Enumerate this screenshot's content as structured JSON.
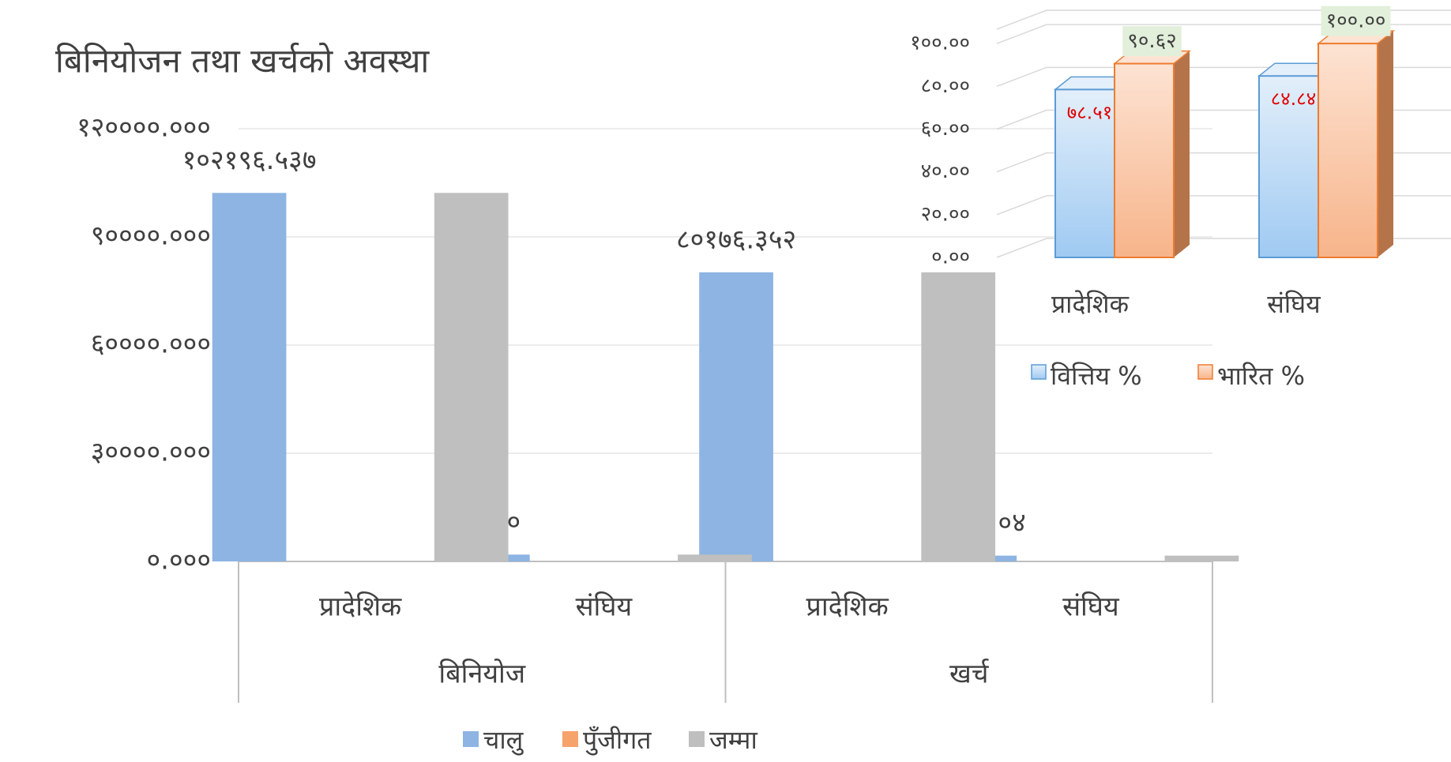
{
  "chart_data": [
    {
      "type": "bar",
      "title": "बिनियोजन तथा खर्चको अवस्था",
      "group_labels": [
        "बिनियोज",
        "खर्च"
      ],
      "categories": [
        "प्रादेशिक",
        "संघिय",
        "प्रादेशिक",
        "संघिय"
      ],
      "series": [
        {
          "name": "चालु",
          "color": "#8db4e2",
          "values": [
            102196.537,
            1900,
            80176.352,
            1612.04
          ],
          "value_labels": [
            "१०२१९६.५३७",
            "१९००",
            "८०१७६.३५२",
            "१६१२.०४"
          ]
        },
        {
          "name": "पुँजीगत",
          "color": "#f6a26b",
          "values": [
            0,
            0,
            0,
            0
          ]
        },
        {
          "name": "जम्मा",
          "color": "#bfbfbf",
          "values": [
            102196.537,
            1900,
            80176.352,
            1612.04
          ]
        }
      ],
      "ylim": [
        0,
        120000
      ],
      "yticks": [
        {
          "value": 0,
          "label": "०.०००"
        },
        {
          "value": 30000,
          "label": "३००००.०००"
        },
        {
          "value": 60000,
          "label": "६००००.०००"
        },
        {
          "value": 90000,
          "label": "९००००.०००"
        },
        {
          "value": 120000,
          "label": "१२००००.०००"
        }
      ],
      "grid": true,
      "legend": "bottom"
    },
    {
      "type": "bar3d",
      "categories": [
        "प्रादेशिक",
        "संघिय"
      ],
      "series": [
        {
          "name": "वित्तिय %",
          "color": "#5b9bd5",
          "values": [
            78.51,
            84.84
          ],
          "value_labels": [
            "७८.५१",
            "८४.८४"
          ]
        },
        {
          "name": "भारित %",
          "color": "#ed7d31",
          "values": [
            90.62,
            100.0
          ],
          "value_labels": [
            "९०.६२",
            "१००.००"
          ]
        }
      ],
      "ylim": [
        0,
        120
      ],
      "yticks": [
        {
          "value": 0,
          "label": "०.००"
        },
        {
          "value": 20,
          "label": "२०.००"
        },
        {
          "value": 40,
          "label": "४०.००"
        },
        {
          "value": 60,
          "label": "६०.००"
        },
        {
          "value": 80,
          "label": "८०.००"
        },
        {
          "value": 100,
          "label": "१००.००"
        }
      ],
      "grid": true,
      "legend": "bottom"
    }
  ]
}
